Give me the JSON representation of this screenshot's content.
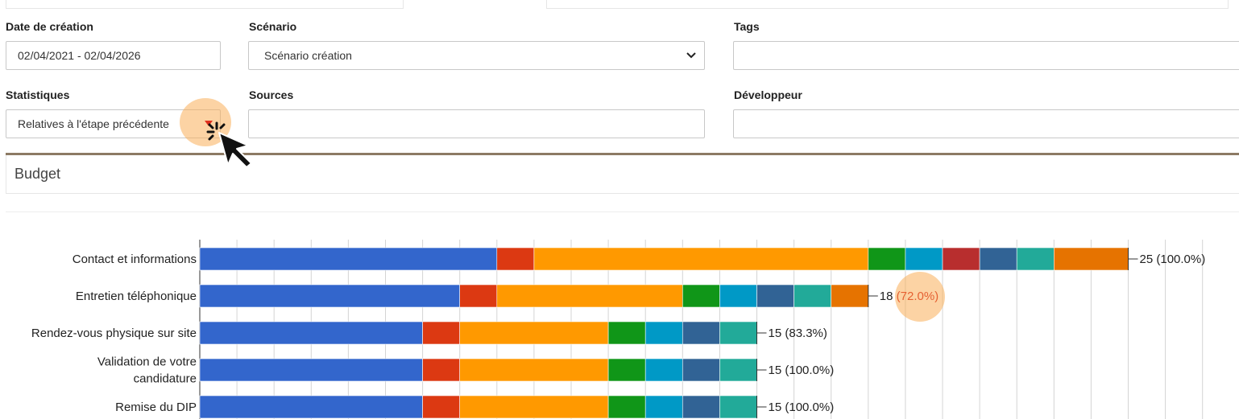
{
  "filters": {
    "date_label": "Date de création",
    "date_value": "02/04/2021 - 02/04/2026",
    "scenario_label": "Scénario",
    "scenario_value": "Scénario création",
    "tags_label": "Tags",
    "tags_value": "",
    "stats_label": "Statistiques",
    "stats_value": "Relatives à l'étape précédente",
    "sources_label": "Sources",
    "sources_value": "",
    "dev_label": "Développeur",
    "dev_value": ""
  },
  "panel": {
    "title": "Budget"
  },
  "colors": [
    "#3366cc",
    "#dc3912",
    "#ff9900",
    "#109618",
    "#0099c6",
    "#b82e2e",
    "#316395",
    "#22aa99",
    "#e67300"
  ],
  "chart_data": {
    "type": "bar",
    "orientation": "horizontal",
    "stacked": true,
    "categories": [
      "Contact et informations",
      "Entretien téléphonique",
      "Rendez-vous physique sur site",
      "Validation de votre candidature",
      "Remise du DIP"
    ],
    "category_lines": [
      [
        "Contact et informations"
      ],
      [
        "Entretien téléphonique"
      ],
      [
        "Rendez-vous physique sur site"
      ],
      [
        "Validation de votre",
        "candidature"
      ],
      [
        "Remise du DIP"
      ]
    ],
    "segments": [
      [
        8,
        1,
        9,
        1,
        1,
        1,
        1,
        1,
        2
      ],
      [
        7,
        1,
        5,
        1,
        1,
        0,
        1,
        1,
        1
      ],
      [
        6,
        1,
        4,
        1,
        1,
        0,
        1,
        1,
        0
      ],
      [
        6,
        1,
        4,
        1,
        1,
        0,
        1,
        1,
        0
      ],
      [
        6,
        1,
        4,
        1,
        1,
        0,
        1,
        1,
        0
      ]
    ],
    "totals": [
      {
        "count": "25",
        "pct": "(100.0%)"
      },
      {
        "count": "18",
        "pct": "(72.0%)"
      },
      {
        "count": "15",
        "pct": "(83.3%)"
      },
      {
        "count": "15",
        "pct": "(100.0%)"
      },
      {
        "count": "15",
        "pct": "(100.0%)"
      }
    ],
    "highlight_row": 1,
    "highlight_color": "#cc0000",
    "xlim": [
      0,
      28
    ],
    "grid": true
  }
}
